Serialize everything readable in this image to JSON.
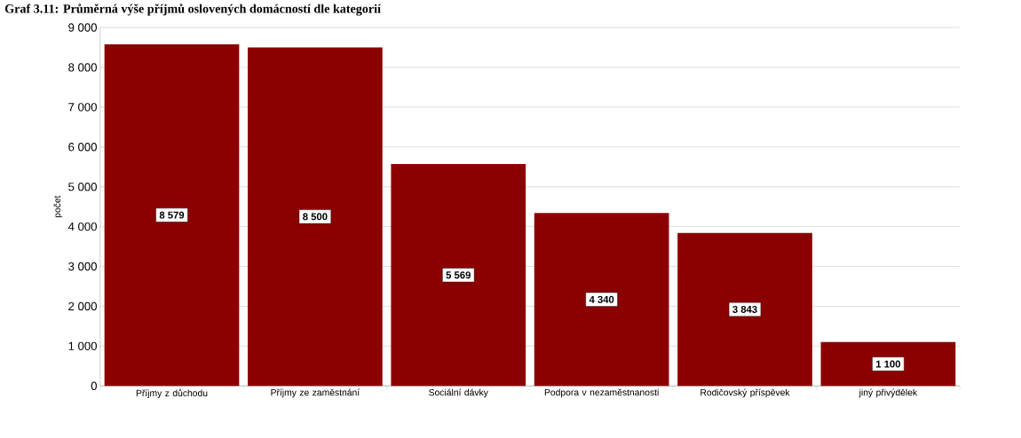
{
  "chart_data": {
    "type": "bar",
    "title": "Graf 3.11: Průměrná výše příjmů oslovených domácností dle kategorií",
    "ylabel": "počet",
    "categories": [
      "Příjmy z důchodu",
      "Příjmy ze zaměstnání",
      "Sociální dávky",
      "Podpora v nezaměstnanosti",
      "Rodičovský příspěvek",
      "jiný přivýdělek"
    ],
    "values": [
      8579,
      8500,
      5569,
      4340,
      3843,
      1100
    ],
    "value_labels": [
      "8 579",
      "8 500",
      "5 569",
      "4 340",
      "3 843",
      "1 100"
    ],
    "color": "#8b0000",
    "ylim": [
      0,
      9000
    ],
    "yticks": [
      {
        "value": 0,
        "label": "0"
      },
      {
        "value": 1000,
        "label": "1 000"
      },
      {
        "value": 2000,
        "label": "2 000"
      },
      {
        "value": 3000,
        "label": "3 000"
      },
      {
        "value": 4000,
        "label": "4 000"
      },
      {
        "value": 5000,
        "label": "5 000"
      },
      {
        "value": 6000,
        "label": "6 000"
      },
      {
        "value": 7000,
        "label": "7 000"
      },
      {
        "value": 8000,
        "label": "8 000"
      },
      {
        "value": 9000,
        "label": "9 000"
      }
    ],
    "grid": "y"
  }
}
